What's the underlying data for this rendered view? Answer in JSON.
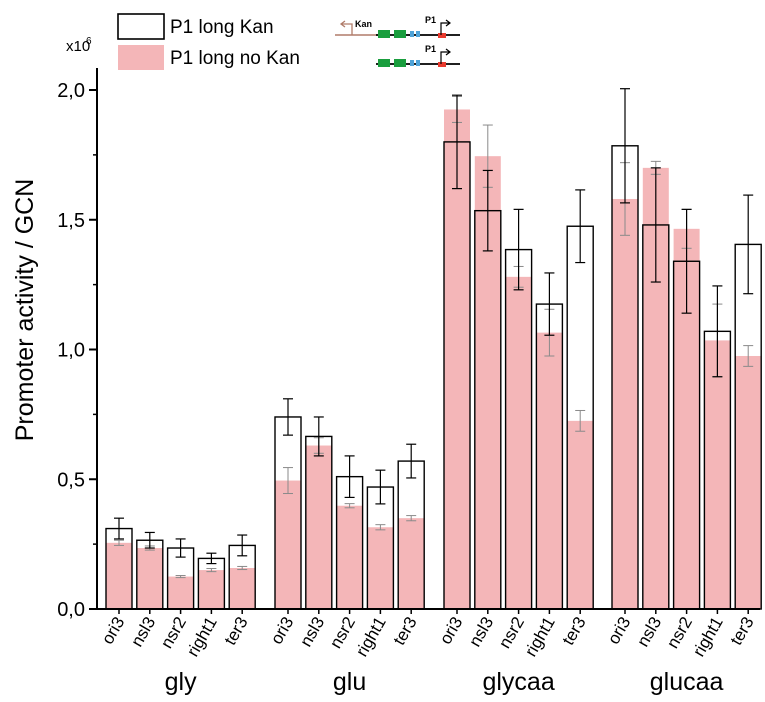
{
  "chart_data": {
    "type": "bar",
    "ylabel": "Promoter activity / GCN",
    "y_multiplier": "x10",
    "y_multiplier_exp": "6",
    "ylim": [
      0,
      2.1
    ],
    "yticks": [
      0.0,
      0.5,
      1.0,
      1.5,
      2.0
    ],
    "ytick_labels": [
      "0,0",
      "0,5",
      "1,0",
      "1,5",
      "2,0"
    ],
    "groups": [
      "gly",
      "glu",
      "glycaa",
      "glucaa"
    ],
    "categories": [
      "ori3",
      "nsl3",
      "nsr2",
      "right1",
      "ter3"
    ],
    "legend_position": "top-left",
    "series": [
      {
        "name": "P1 long Kan",
        "style": "outline",
        "color": "#ffffff",
        "values": [
          [
            0.31,
            0.265,
            0.235,
            0.195,
            0.245
          ],
          [
            0.74,
            0.665,
            0.51,
            0.47,
            0.57
          ],
          [
            1.8,
            1.535,
            1.385,
            1.175,
            1.475
          ],
          [
            1.785,
            1.48,
            1.34,
            1.07,
            1.405
          ]
        ],
        "errors": [
          [
            0.04,
            0.03,
            0.035,
            0.02,
            0.04
          ],
          [
            0.07,
            0.075,
            0.08,
            0.065,
            0.065
          ],
          [
            0.18,
            0.155,
            0.155,
            0.12,
            0.14
          ],
          [
            0.22,
            0.22,
            0.2,
            0.175,
            0.19
          ]
        ]
      },
      {
        "name": "P1 long no Kan",
        "style": "filled",
        "color": "#f4b6b8",
        "values": [
          [
            0.255,
            0.235,
            0.125,
            0.15,
            0.158
          ],
          [
            0.495,
            0.63,
            0.398,
            0.315,
            0.35
          ],
          [
            1.925,
            1.745,
            1.28,
            1.065,
            0.725
          ],
          [
            1.58,
            1.7,
            1.465,
            1.035,
            0.975
          ]
        ],
        "errors": [
          [
            0.01,
            0.008,
            0.004,
            0.006,
            0.006
          ],
          [
            0.05,
            0.03,
            0.008,
            0.01,
            0.01
          ],
          [
            0.05,
            0.12,
            0.04,
            0.09,
            0.04
          ],
          [
            0.14,
            0.025,
            0.075,
            0.14,
            0.04
          ]
        ]
      }
    ]
  },
  "schematic": {
    "kan_label": "Kan",
    "p1_label": "P1",
    "colors": {
      "gene_green": "#1a9e3e",
      "box_blue": "#4fa3d8",
      "promoter_red": "#e83a2e",
      "kan_line": "#b07c6a"
    }
  }
}
